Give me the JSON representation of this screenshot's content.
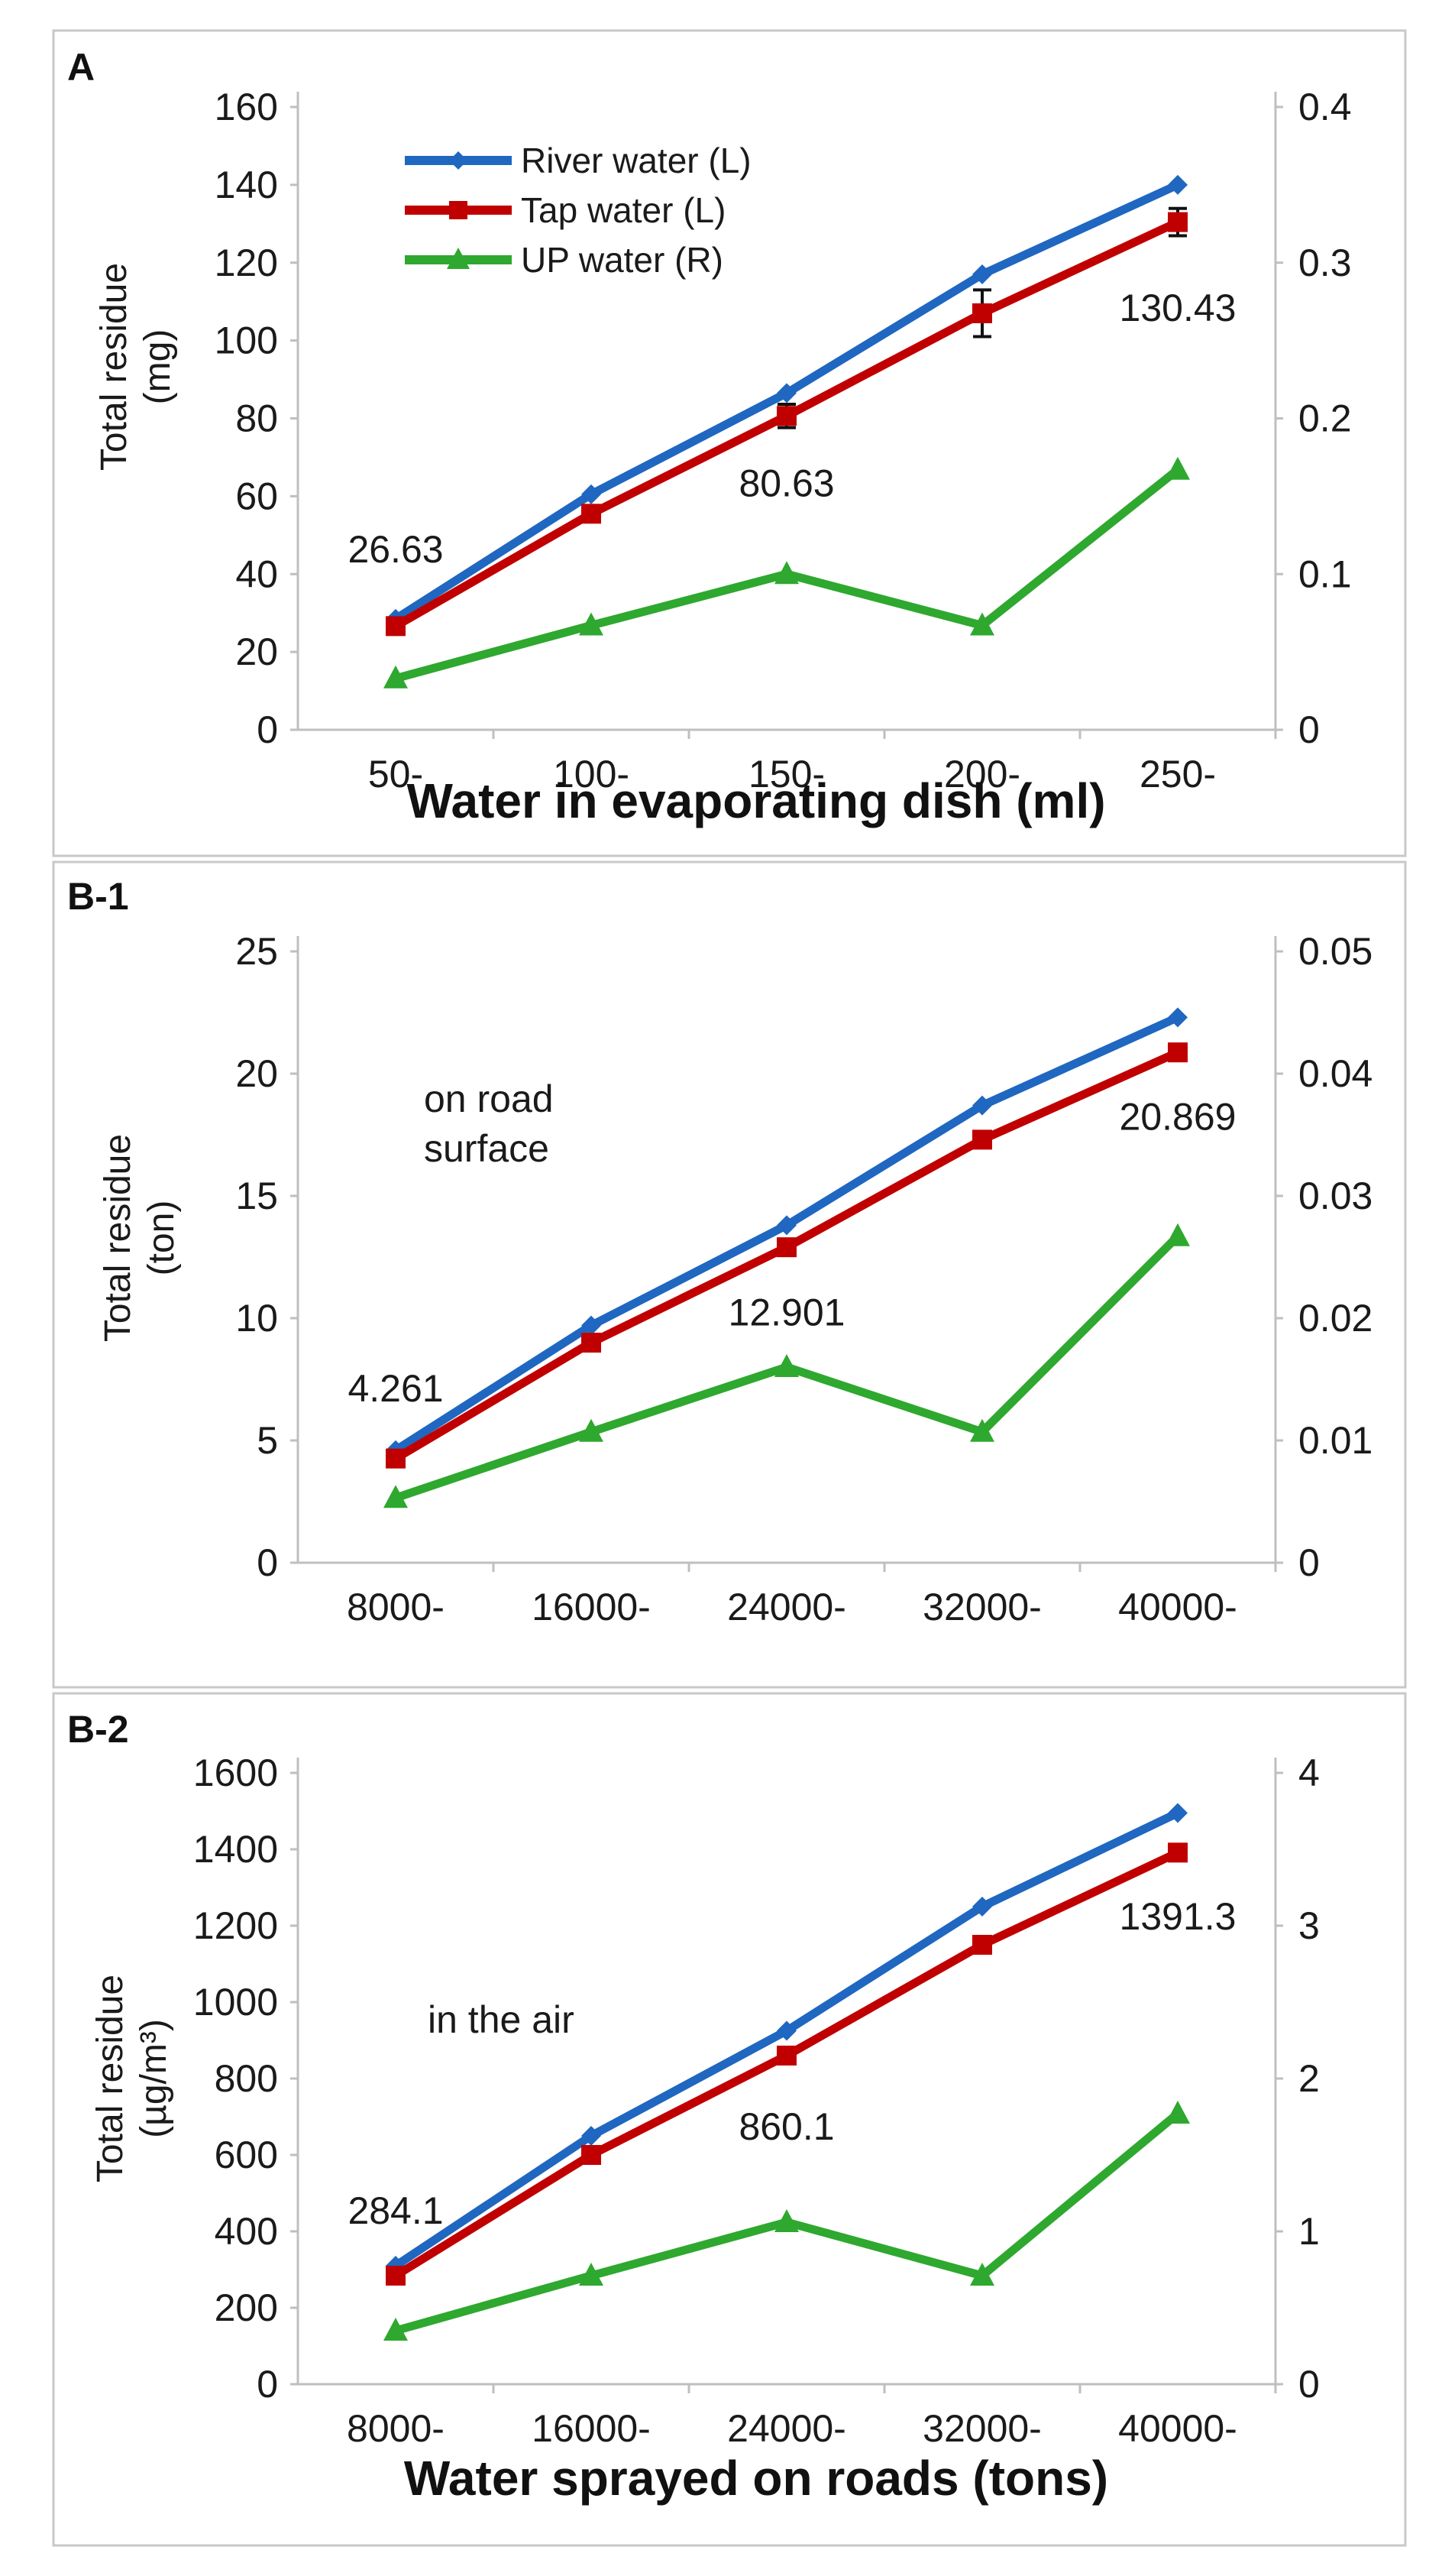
{
  "colors": {
    "river": "#1f67c0",
    "tap": "#c00000",
    "up": "#2ea82e",
    "axis": "#bfbfbf",
    "text": "#1a1a1a"
  },
  "chart_data": [
    {
      "panel_label": "A",
      "type": "line",
      "categories": [
        "50-",
        "100-",
        "150-",
        "200-",
        "250-"
      ],
      "xlabel": "Water in evaporating dish (ml)",
      "ylabel": [
        "Total residue",
        "(mg)"
      ],
      "y_left": {
        "range": [
          0,
          160
        ],
        "ticks": [
          "0",
          "20",
          "40",
          "60",
          "80",
          "100",
          "120",
          "140",
          "160"
        ]
      },
      "y_right": {
        "range": [
          0,
          0.4
        ],
        "ticks": [
          "0",
          "0.1",
          "0.2",
          "0.3",
          "0.4"
        ]
      },
      "legend": [
        "River water (L)",
        "Tap water (L)",
        "UP water (R)"
      ],
      "series": [
        {
          "name": "River water (L)",
          "axis": "left",
          "marker": "diamond",
          "color_key": "river",
          "values": [
            28.5,
            60.5,
            86.5,
            117,
            140
          ]
        },
        {
          "name": "Tap water (L)",
          "axis": "left",
          "marker": "square",
          "color_key": "tap",
          "values": [
            26.63,
            55.5,
            80.63,
            107,
            130.43
          ],
          "errors": [
            0,
            0,
            3,
            6,
            3.5
          ]
        },
        {
          "name": "UP water (R)",
          "axis": "right",
          "marker": "triangle",
          "color_key": "up",
          "values": [
            0.033,
            0.067,
            0.1,
            0.067,
            0.167
          ]
        }
      ],
      "annotations": [
        {
          "text": "26.63",
          "category": 0,
          "y": 43
        },
        {
          "text": "80.63",
          "category": 2,
          "y": 60
        },
        {
          "text": "130.43",
          "category": 4,
          "y": 105
        }
      ]
    },
    {
      "panel_label": "B-1",
      "type": "line",
      "categories": [
        "8000-",
        "16000-",
        "24000-",
        "32000-",
        "40000-"
      ],
      "xlabel": "",
      "ylabel": [
        "Total residue",
        "(ton)"
      ],
      "y_left": {
        "range": [
          0,
          25
        ],
        "ticks": [
          "0",
          "5",
          "10",
          "15",
          "20",
          "25"
        ]
      },
      "y_right": {
        "range": [
          0,
          0.05
        ],
        "ticks": [
          "0",
          "0.01",
          "0.02",
          "0.03",
          "0.04",
          "0.05"
        ]
      },
      "series": [
        {
          "name": "River water (L)",
          "axis": "left",
          "marker": "diamond",
          "color_key": "river",
          "values": [
            4.6,
            9.7,
            13.8,
            18.7,
            22.3
          ]
        },
        {
          "name": "Tap water (L)",
          "axis": "left",
          "marker": "square",
          "color_key": "tap",
          "values": [
            4.261,
            9.0,
            12.901,
            17.3,
            20.869
          ]
        },
        {
          "name": "UP water (R)",
          "axis": "right",
          "marker": "triangle",
          "color_key": "up",
          "values": [
            0.0053,
            0.0107,
            0.016,
            0.0107,
            0.0267
          ]
        }
      ],
      "annotations": [
        {
          "text": "4.261",
          "category": 0,
          "y": 6.6
        },
        {
          "text": "12.901",
          "category": 2,
          "y": 9.7
        },
        {
          "text": "20.869",
          "category": 4,
          "y": 17.7
        }
      ],
      "notes": [
        "on road",
        "surface"
      ]
    },
    {
      "panel_label": "B-2",
      "type": "line",
      "categories": [
        "8000-",
        "16000-",
        "24000-",
        "32000-",
        "40000-"
      ],
      "xlabel": "Water sprayed on roads (tons)",
      "ylabel": [
        "Total residue",
        "(µg/m³)"
      ],
      "y_left": {
        "range": [
          0,
          1600
        ],
        "ticks": [
          "0",
          "200",
          "400",
          "600",
          "800",
          "1000",
          "1200",
          "1400",
          "1600"
        ]
      },
      "y_right": {
        "range": [
          0,
          4
        ],
        "ticks": [
          "0",
          "1",
          "2",
          "3",
          "4"
        ]
      },
      "series": [
        {
          "name": "River water (L)",
          "axis": "left",
          "marker": "diamond",
          "color_key": "river",
          "values": [
            310,
            650,
            925,
            1250,
            1495
          ]
        },
        {
          "name": "Tap water (L)",
          "axis": "left",
          "marker": "square",
          "color_key": "tap",
          "values": [
            284.1,
            600,
            860.1,
            1150,
            1391.3
          ]
        },
        {
          "name": "UP water (R)",
          "axis": "right",
          "marker": "triangle",
          "color_key": "up",
          "values": [
            0.35,
            0.71,
            1.06,
            0.71,
            1.77
          ]
        }
      ],
      "annotations": [
        {
          "text": "284.1",
          "category": 0,
          "y": 420
        },
        {
          "text": "860.1",
          "category": 2,
          "y": 640
        },
        {
          "text": "1391.3",
          "category": 4,
          "y": 1190
        }
      ],
      "notes": [
        "in the air"
      ]
    }
  ]
}
